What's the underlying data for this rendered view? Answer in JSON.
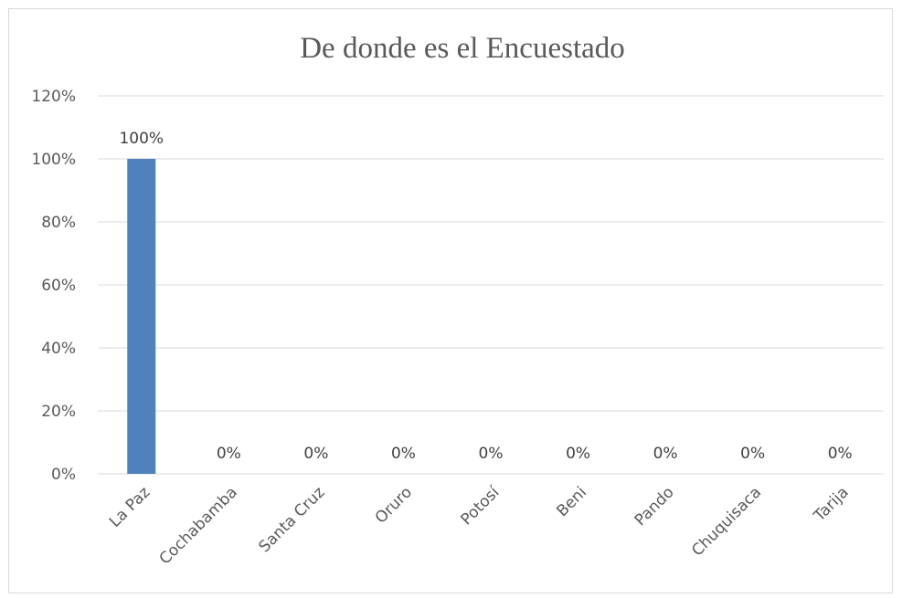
{
  "chart_data": {
    "type": "bar",
    "title": "De donde es el Encuestado",
    "xlabel": "",
    "ylabel": "",
    "categories": [
      "La Paz",
      "Cochabamba",
      "Santa Cruz",
      "Oruro",
      "Potosí",
      "Beni",
      "Pando",
      "Chuquisaca",
      "Tarija"
    ],
    "values": [
      100,
      0,
      0,
      0,
      0,
      0,
      0,
      0,
      0
    ],
    "data_labels": [
      "100%",
      "0%",
      "0%",
      "0%",
      "0%",
      "0%",
      "0%",
      "0%",
      "0%"
    ],
    "y_ticks": [
      "0%",
      "20%",
      "40%",
      "60%",
      "80%",
      "100%",
      "120%"
    ],
    "ylim": [
      0,
      120
    ],
    "grid": true,
    "legend": "none",
    "bar_color": "#4f81bd"
  }
}
